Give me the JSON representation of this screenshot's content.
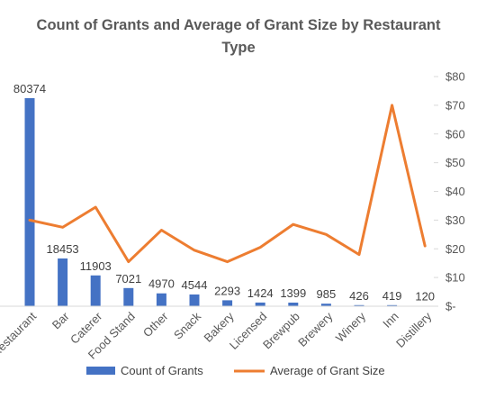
{
  "chart_data": {
    "type": "bar",
    "title_lines": [
      "Count of Grants and Average of Grant Size by Restaurant",
      "Type"
    ],
    "categories": [
      "Restaurant",
      "Bar",
      "Caterer",
      "Food Stand",
      "Other",
      "Snack",
      "Bakery",
      "Licensed",
      "Brewpub",
      "Brewery",
      "Winery",
      "Inn",
      "Distillery"
    ],
    "series": [
      {
        "name": "Count of Grants",
        "type": "bar",
        "color": "#4472C4",
        "values": [
          80374,
          18453,
          11903,
          7021,
          4970,
          4544,
          2293,
          1424,
          1399,
          985,
          426,
          419,
          120
        ],
        "data_labels": [
          "80374",
          "18453",
          "11903",
          "7021",
          "4970",
          "4544",
          "2293",
          "1424",
          "1399",
          "985",
          "426",
          "419",
          "120"
        ]
      },
      {
        "name": "Average of Grant Size",
        "type": "line",
        "color": "#ED7D31",
        "values": [
          30,
          27.5,
          34.5,
          15.5,
          26.5,
          19.5,
          15.5,
          20.5,
          28.5,
          25,
          18,
          70,
          21
        ]
      }
    ],
    "y_left_max": 80374,
    "y_right": {
      "min": 0,
      "max": 80,
      "ticks": [
        0,
        10,
        20,
        30,
        40,
        50,
        60,
        70,
        80
      ],
      "tick_labels": [
        "$-",
        "$10",
        "$20",
        "$30",
        "$40",
        "$50",
        "$60",
        "$70",
        "$80"
      ]
    },
    "legend": {
      "position": "bottom",
      "entries": [
        "Count of Grants",
        "Average of Grant Size"
      ]
    },
    "grid": false
  }
}
